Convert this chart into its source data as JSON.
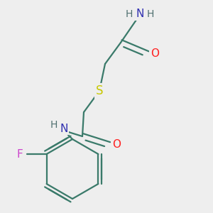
{
  "bg_color": "#eeeeee",
  "atom_colors": {
    "C": "#3a7a6a",
    "N": "#3030b0",
    "O": "#ff2020",
    "S": "#c8c800",
    "F": "#cc44cc",
    "H": "#507070"
  },
  "bond_color": "#3a7a6a",
  "bond_width": 1.6,
  "font_size_atom": 11,
  "font_size_H": 10,
  "font_size_S": 12
}
